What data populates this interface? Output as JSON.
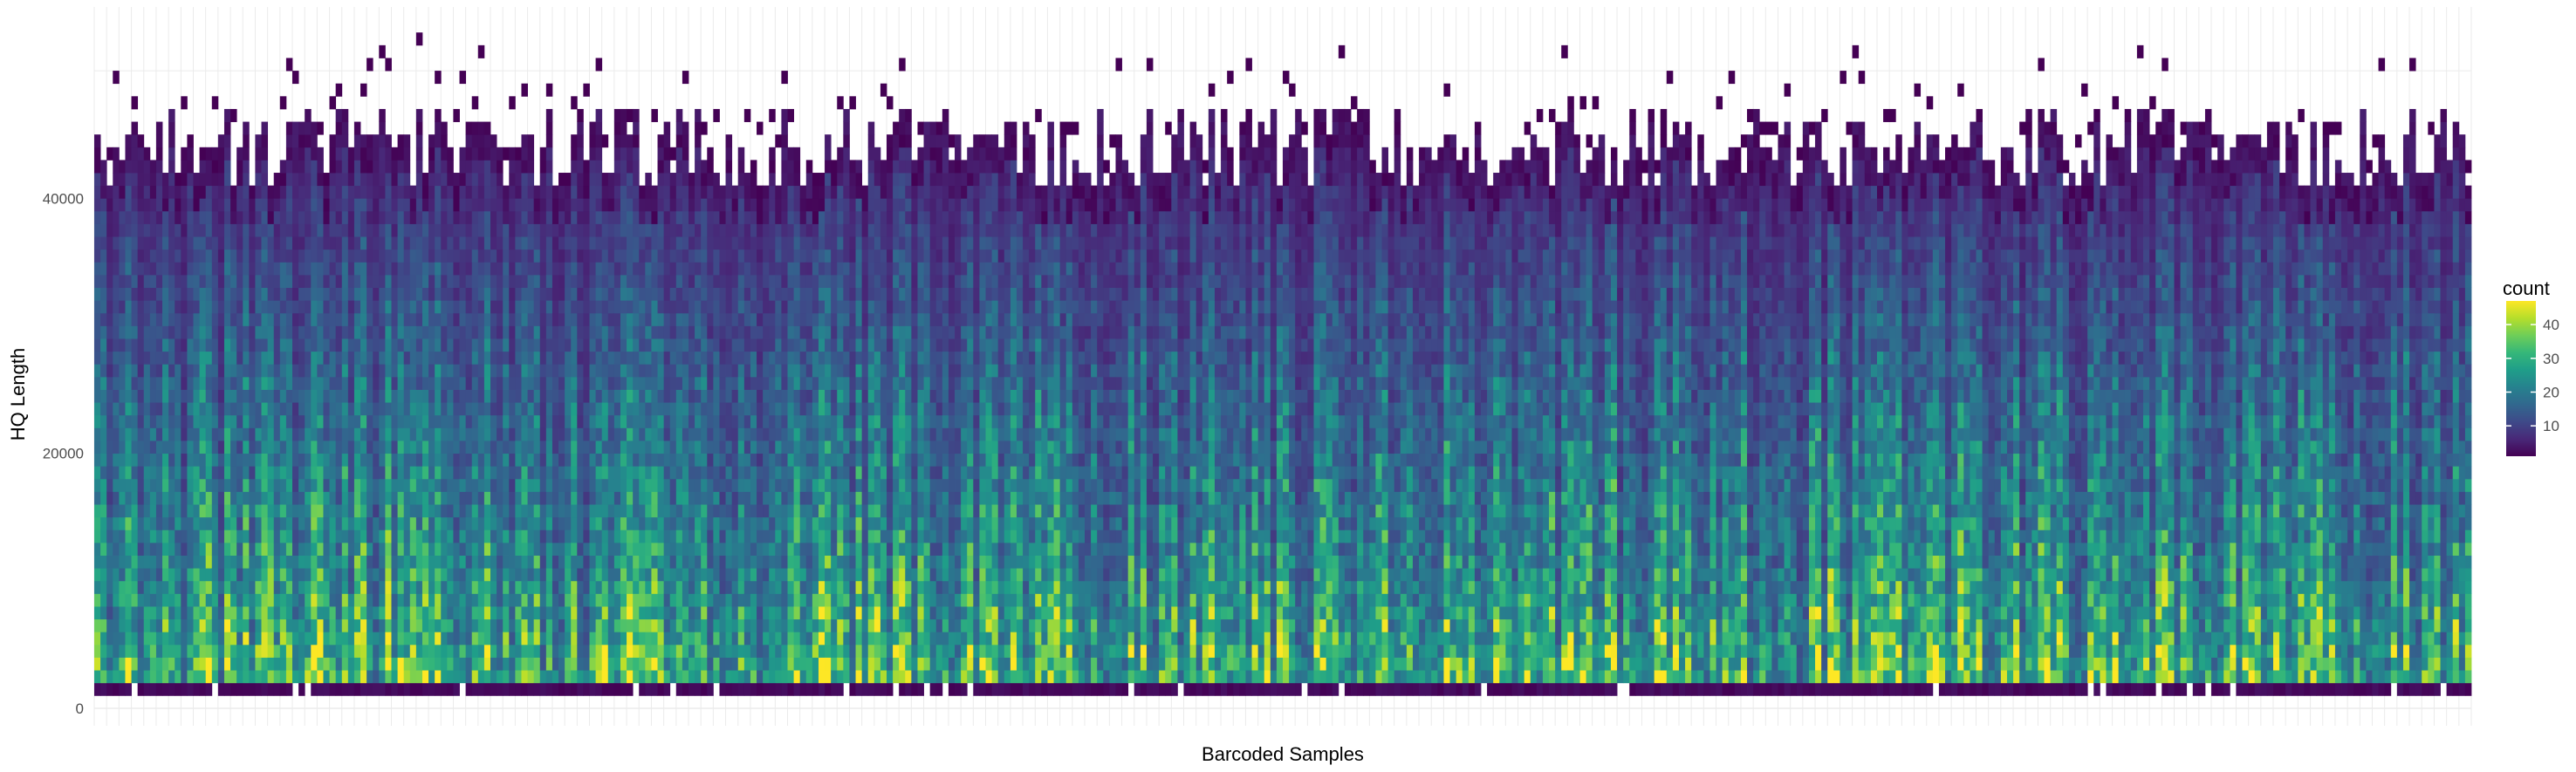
{
  "chart_data": {
    "type": "heatmap",
    "title": "",
    "xlabel": "Barcoded Samples",
    "ylabel": "HQ Length",
    "x": {
      "label": "Barcoded Samples",
      "n_samples": 384,
      "tick_labels": []
    },
    "y": {
      "label": "HQ Length",
      "ylim": [
        0,
        55000
      ],
      "bin_width": 1000,
      "ticks": [
        0,
        20000,
        40000
      ],
      "tick_labels": [
        "0",
        "20000",
        "40000"
      ]
    },
    "fill": {
      "name": "count",
      "colormap": "viridis",
      "range": [
        1,
        47
      ],
      "breaks": [
        10,
        20,
        30,
        40
      ],
      "break_labels": [
        "10",
        "20",
        "30",
        "40"
      ]
    },
    "grid": true,
    "legend_position": "right",
    "color_stops": [
      "#440154",
      "#482878",
      "#3e4a89",
      "#31688e",
      "#26828e",
      "#1f9e89",
      "#35b779",
      "#6ece58",
      "#b5de2b",
      "#fde725"
    ],
    "grid_color": "#ebebeb"
  }
}
